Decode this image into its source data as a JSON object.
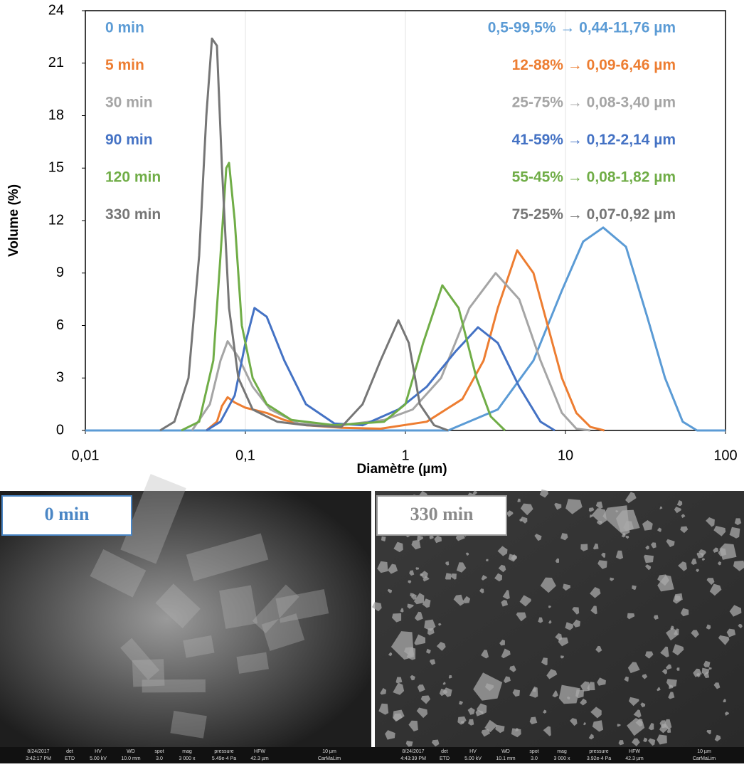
{
  "chart_data": {
    "type": "line",
    "xlabel": "Diamètre (µm)",
    "ylabel": "Volume (%)",
    "xscale": "log",
    "xlim": [
      0.01,
      100
    ],
    "ylim": [
      0,
      24
    ],
    "xticks": [
      {
        "value": 0.01,
        "label": "0,01"
      },
      {
        "value": 0.1,
        "label": "0,1"
      },
      {
        "value": 1,
        "label": "1"
      },
      {
        "value": 10,
        "label": "10"
      },
      {
        "value": 100,
        "label": "100"
      }
    ],
    "yticks": [
      0,
      3,
      6,
      9,
      12,
      15,
      18,
      21,
      24
    ],
    "grid": true,
    "series": [
      {
        "name": "0 min",
        "color": "#5b9bd5",
        "range_label": "0,5-99,5% → 0,44-11,76 µm",
        "x": [
          0.01,
          1.85,
          3.78,
          6.31,
          9.5,
          12.9,
          17.2,
          23.9,
          32.4,
          41.9,
          54,
          66.4,
          100
        ],
        "values": [
          0,
          0,
          1.2,
          4,
          8,
          10.8,
          11.6,
          10.5,
          6.5,
          3,
          0.5,
          0,
          0
        ]
      },
      {
        "name": "5 min",
        "color": "#ed7d31",
        "range_label": "12-88% → 0,09-6,46 µm",
        "x": [
          0.057,
          0.0664,
          0.0714,
          0.0774,
          0.0858,
          0.1,
          0.136,
          0.175,
          0.239,
          0.4,
          0.7,
          1.36,
          2.27,
          3.08,
          3.78,
          4.99,
          6.31,
          7.74,
          9.5,
          11.7,
          14.3,
          17.5
        ],
        "values": [
          0,
          0.5,
          1.4,
          1.9,
          1.6,
          1.3,
          1.0,
          0.6,
          0.3,
          0.15,
          0.1,
          0.5,
          1.8,
          4,
          7,
          10.3,
          9,
          6,
          3,
          1,
          0.2,
          0
        ]
      },
      {
        "name": "30 min",
        "color": "#a5a5a5",
        "range_label": "25-75% → 0,08-3,40 µm",
        "x": [
          0.0464,
          0.06,
          0.0699,
          0.0774,
          0.0904,
          0.111,
          0.143,
          0.215,
          0.398,
          0.736,
          1.11,
          1.67,
          2.51,
          3.66,
          5.14,
          6.98,
          9.5,
          11.7,
          14.3
        ],
        "values": [
          0,
          1.5,
          4,
          5.1,
          4.2,
          2.5,
          1.2,
          0.4,
          0.3,
          0.6,
          1.2,
          3,
          7,
          9,
          7.5,
          4,
          1,
          0.1,
          0
        ]
      },
      {
        "name": "90 min",
        "color": "#4472c4",
        "range_label": "41-59% → 0,12-2,14 µm",
        "x": [
          0.057,
          0.0699,
          0.0858,
          0.1,
          0.114,
          0.136,
          0.175,
          0.239,
          0.36,
          0.54,
          0.904,
          1.36,
          2.05,
          2.84,
          3.78,
          5.14,
          6.98,
          8.58
        ],
        "values": [
          0,
          0.5,
          2,
          5,
          7,
          6.5,
          4,
          1.5,
          0.4,
          0.3,
          1.2,
          2.5,
          4.5,
          5.9,
          5,
          2.5,
          0.5,
          0
        ]
      },
      {
        "name": "120 min",
        "color": "#70ad47",
        "range_label": "55-45% → 0,08-1,82 µm",
        "x": [
          0.0398,
          0.0514,
          0.063,
          0.0699,
          0.0759,
          0.079,
          0.0858,
          0.095,
          0.111,
          0.136,
          0.194,
          0.36,
          0.736,
          1.0,
          1.29,
          1.7,
          2.15,
          2.78,
          3.41,
          4.19
        ],
        "values": [
          0,
          0.5,
          4,
          10,
          15,
          15.3,
          12,
          6,
          3,
          1.5,
          0.6,
          0.3,
          0.5,
          1.5,
          5,
          8.3,
          7,
          3,
          0.8,
          0
        ]
      },
      {
        "name": "330 min",
        "color": "#767676",
        "range_label": "75-25% → 0,07-0,92 µm",
        "x": [
          0.0293,
          0.036,
          0.0441,
          0.0514,
          0.057,
          0.0618,
          0.0664,
          0.0714,
          0.079,
          0.0904,
          0.111,
          0.158,
          0.239,
          0.398,
          0.54,
          0.699,
          0.904,
          1.05,
          1.23,
          1.51,
          1.85
        ],
        "values": [
          0,
          0.5,
          3,
          10,
          18,
          22.4,
          22,
          15,
          7,
          3,
          1.2,
          0.5,
          0.3,
          0.2,
          1.5,
          4,
          6.3,
          5,
          1.5,
          0.3,
          0
        ]
      }
    ]
  },
  "images": [
    {
      "label": "0 min",
      "footer": [
        [
          "8/24/2017",
          "3:42:17 PM"
        ],
        [
          "det",
          "ETD"
        ],
        [
          "HV",
          "5.00 kV"
        ],
        [
          "WD",
          "10.0 mm"
        ],
        [
          "spot",
          "3.0"
        ],
        [
          "mag",
          "3 000 x"
        ],
        [
          "pressure",
          "5.49e-4 Pa"
        ],
        [
          "HFW",
          "42.3 µm"
        ],
        [
          "10 µm",
          "CarMaLim"
        ]
      ]
    },
    {
      "label": "330 min",
      "footer": [
        [
          "8/24/2017",
          "4:43:39 PM"
        ],
        [
          "det",
          "ETD"
        ],
        [
          "HV",
          "5.00 kV"
        ],
        [
          "WD",
          "10.1 mm"
        ],
        [
          "spot",
          "3.0"
        ],
        [
          "mag",
          "3 000 x"
        ],
        [
          "pressure",
          "3.92e-4 Pa"
        ],
        [
          "HFW",
          "42.3 µm"
        ],
        [
          "10 µm",
          "CarMaLim"
        ]
      ]
    }
  ]
}
